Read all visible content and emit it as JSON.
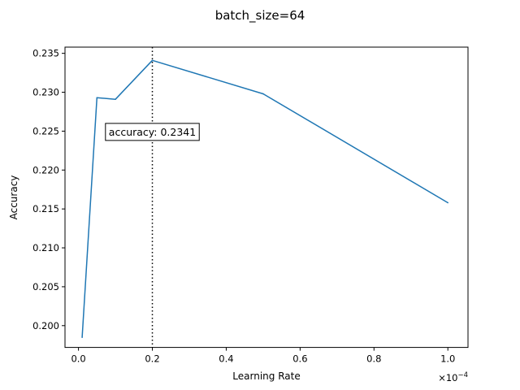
{
  "chart_data": {
    "type": "line",
    "title": "batch_size=64",
    "xlabel": "Learning Rate",
    "ylabel": "Accuracy",
    "x_multiplier": "×10⁻⁴",
    "x_multiplier_base": "×10",
    "x_multiplier_exp": "−4",
    "xlim": [
      -0.0365,
      1.0545
    ],
    "ylim": [
      0.1972,
      0.2358
    ],
    "x_ticks": [
      0.0,
      0.2,
      0.4,
      0.6,
      0.8,
      1.0
    ],
    "x_tick_labels": [
      "0.0",
      "0.2",
      "0.4",
      "0.6",
      "0.8",
      "1.0"
    ],
    "y_ticks": [
      0.2,
      0.205,
      0.21,
      0.215,
      0.22,
      0.225,
      0.23,
      0.235
    ],
    "y_tick_labels": [
      "0.200",
      "0.205",
      "0.210",
      "0.215",
      "0.220",
      "0.225",
      "0.230",
      "0.235"
    ],
    "grid": false,
    "legend": "none",
    "series": [
      {
        "color": "#1f77b4",
        "x": [
          0.01,
          0.05,
          0.1,
          0.2,
          0.5,
          1.0
        ],
        "y": [
          0.1985,
          0.2293,
          0.2291,
          0.2341,
          0.2298,
          0.2158
        ]
      }
    ],
    "vline": {
      "x": 0.2,
      "style": "dotted",
      "color": "#000000"
    },
    "annotation": {
      "text": "accuracy: 0.2341",
      "x": 0.2,
      "y": 0.2249
    }
  }
}
